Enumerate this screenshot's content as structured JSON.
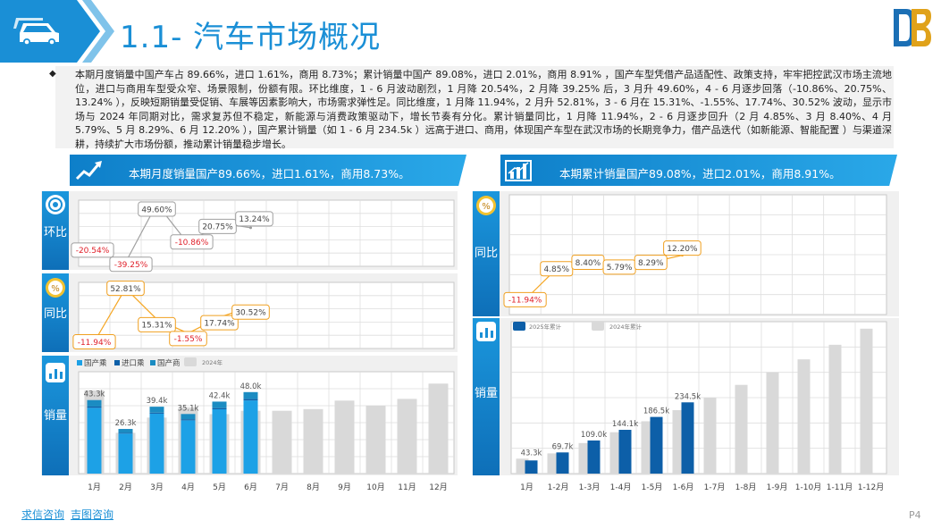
{
  "header": {
    "title": "1.1- 汽车市场概况"
  },
  "summary": "本期月度销量中国产车占 89.66%，进口 1.61%，商用 8.73%；累计销量中国产 89.08%，进口 2.01%，商用 8.91% ，国产车型凭借产品适配性、政策支持，牢牢把控武汉市场主流地位，进口与商用车型受众窄、场景限制，份额有限。环比维度，1 - 6 月波动剧烈，1 月降 20.54%，2 月降 39.25% 后，3 月升 49.60%，4 - 6 月逐步回落（-10.86%、20.75%、13.24% ），反映短期销量受促销、车展等因素影响大，市场需求弹性足。同比维度，1 月降 11.94%，2 月升 52.81%，3 - 6 月在 15.31%、-1.55%、17.74%、30.52% 波动，显示市场与 2024 年同期对比，需求复苏但不稳定，新能源与消费政策驱动下，增长节奏有分化。累计销量同比，1 月降 11.94%，2 - 6 月逐步回升（2 月 4.85%、3 月 8.40%、4 月 5.79%、5 月 8.29%、6 月 12.20% ），国产累计销量（如 1 - 6 月 234.5k ）远高于进口、商用，体现国产车型在武汉市场的长期竞争力，借产品迭代（如新能源、智能配置 ）与渠道深耕，持续扩大市场份额，推动累计销量稳步增长。",
  "left_banner": "本期月度销量国产89.66%，进口1.61%，商用8.73%。",
  "right_banner": "本期累计销量国产89.08%，进口2.01%，商用8.91%。",
  "tabs": {
    "mom": "环比",
    "yoy": "同比",
    "sales": "销量"
  },
  "footer": {
    "link1": "求信咨询",
    "link2": "吉图咨询",
    "page": "P4"
  },
  "colors": {
    "primary": "#1a8fd6",
    "domestic": "#1da1e6",
    "import": "#0d5fa8",
    "commercial": "#1b8cc2",
    "prev_year": "#d9d9d9",
    "negative": "#e0202a",
    "bubble_border_orange": "#f0a020",
    "bubble_border_gray": "#a0a0a0"
  },
  "chart_data": [
    {
      "type": "line",
      "title": "环比",
      "x": [
        "1月",
        "2月",
        "3月",
        "4月",
        "5月",
        "6月"
      ],
      "values": [
        -20.54,
        -39.25,
        49.6,
        -10.86,
        20.75,
        13.24
      ],
      "labels": [
        "-20.54%",
        "-39.25%",
        "49.60%",
        "-10.86%",
        "20.75%",
        "13.24%"
      ]
    },
    {
      "type": "line",
      "title": "同比",
      "x": [
        "1月",
        "2月",
        "3月",
        "4月",
        "5月",
        "6月"
      ],
      "values": [
        -11.94,
        52.81,
        15.31,
        -1.55,
        17.74,
        30.52
      ],
      "labels": [
        "-11.94%",
        "52.81%",
        "15.31%",
        "-1.55%",
        "17.74%",
        "30.52%"
      ]
    },
    {
      "type": "bar",
      "title": "销量",
      "categories": [
        "1月",
        "2月",
        "3月",
        "4月",
        "5月",
        "6月",
        "7月",
        "8月",
        "9月",
        "10月",
        "11月",
        "12月"
      ],
      "legend": [
        "国产乘",
        "进口乘",
        "国产商",
        "2024年"
      ],
      "series": [
        {
          "name": "国产乘",
          "values": [
            38.8,
            23.6,
            35.3,
            31.4,
            37.9,
            43.1,
            null,
            null,
            null,
            null,
            null,
            null
          ]
        },
        {
          "name": "进口乘",
          "values": [
            0.7,
            0.4,
            0.6,
            0.6,
            0.7,
            0.8,
            null,
            null,
            null,
            null,
            null,
            null
          ]
        },
        {
          "name": "国产商",
          "values": [
            3.8,
            2.3,
            3.5,
            3.1,
            3.8,
            4.1,
            null,
            null,
            null,
            null,
            null,
            null
          ]
        },
        {
          "name": "2024年",
          "values": [
            49.0,
            24.0,
            33.0,
            39.0,
            35.0,
            37.0,
            37.0,
            38.0,
            43.0,
            40.0,
            44.0,
            53.0
          ]
        }
      ],
      "totals": [
        "43.3k",
        "26.3k",
        "39.4k",
        "35.1k",
        "42.4k",
        "48.0k"
      ],
      "ylim": [
        0,
        60
      ]
    },
    {
      "type": "line",
      "title": "同比",
      "x": [
        "1月",
        "1-2月",
        "1-3月",
        "1-4月",
        "1-5月",
        "1-6月"
      ],
      "values": [
        -11.94,
        4.85,
        8.4,
        5.79,
        8.29,
        12.2
      ],
      "labels": [
        "-11.94%",
        "4.85%",
        "8.40%",
        "5.79%",
        "8.29%",
        "12.20%"
      ]
    },
    {
      "type": "bar",
      "title": "销量",
      "categories": [
        "1月",
        "1-2月",
        "1-3月",
        "1-4月",
        "1-5月",
        "1-6月",
        "1-7月",
        "1-8月",
        "1-9月",
        "1-10月",
        "1-11月",
        "1-12月"
      ],
      "legend": [
        "2025年累计",
        "2024年累计"
      ],
      "series": [
        {
          "name": "2025年累计",
          "values": [
            43.3,
            69.7,
            109.0,
            144.1,
            186.5,
            234.5,
            null,
            null,
            null,
            null,
            null,
            null
          ]
        },
        {
          "name": "2024年累计",
          "values": [
            49.2,
            66.5,
            100.6,
            136.2,
            172.2,
            209.0,
            250.0,
            292.0,
            334.0,
            376.0,
            424.0,
            477.0
          ]
        }
      ],
      "totals": [
        "43.3k",
        "69.7k",
        "109.0k",
        "144.1k",
        "186.5k",
        "234.5k"
      ],
      "ylim": [
        0,
        500
      ]
    }
  ]
}
